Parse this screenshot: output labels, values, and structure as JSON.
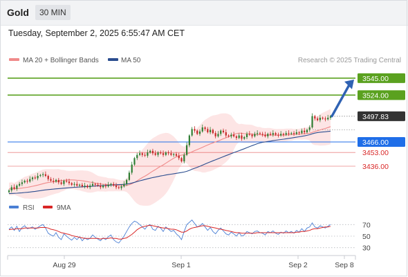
{
  "header": {
    "asset": "Gold",
    "timeframe": "30 MIN"
  },
  "timestamp": "Tuesday, September 2, 2025 6:55:47 AM CET",
  "colors": {
    "resistance": "#5aa11f",
    "support": "#1f6ee8",
    "support_minor": "#d92626",
    "last_price_tag": "#333333",
    "ma20": "#f08a8a",
    "ma50": "#2b4d8f",
    "bollinger_fill": "#fde1e1",
    "candle_up": "#2e7d32",
    "candle_down": "#c62828",
    "arrow": "#2f62b3",
    "rsi": "#4a7fd4",
    "rsi_ma": "#d92626"
  },
  "chart_data": [
    {
      "type": "candlestick",
      "legend": [
        {
          "name": "MA 20 + Bollinger Bands",
          "color": "#f08a8a"
        },
        {
          "name": "MA 50",
          "color": "#2b4d8f"
        }
      ],
      "watermark": "Research © 2025 Trading Central",
      "x_labels": [
        "Aug 29",
        "Sep 1",
        "Sep 2",
        "Sep 8"
      ],
      "ylim": [
        3400,
        3556
      ],
      "levels": [
        {
          "value": 3545.0,
          "label": "3545.00",
          "kind": "resistance"
        },
        {
          "value": 3524.0,
          "label": "3524.00",
          "kind": "resistance"
        },
        {
          "value": 3497.83,
          "label": "3497.83",
          "kind": "last"
        },
        {
          "value": 3466.0,
          "label": "3466.00",
          "kind": "support"
        },
        {
          "value": 3453.0,
          "label": "3453.00",
          "kind": "support_minor"
        },
        {
          "value": 3436.0,
          "label": "3436.00",
          "kind": "support_minor"
        }
      ],
      "closes": [
        3406,
        3410,
        3408,
        3412,
        3414,
        3416,
        3418,
        3417,
        3420,
        3422,
        3421,
        3424,
        3425,
        3426,
        3424,
        3420,
        3418,
        3417,
        3419,
        3416,
        3414,
        3418,
        3417,
        3415,
        3413,
        3414,
        3412,
        3413,
        3411,
        3412,
        3410,
        3412,
        3414,
        3413,
        3412,
        3410,
        3412,
        3411,
        3413,
        3414,
        3412,
        3410,
        3409,
        3411,
        3414,
        3419,
        3428,
        3438,
        3446,
        3450,
        3452,
        3450,
        3449,
        3453,
        3455,
        3452,
        3450,
        3453,
        3452,
        3450,
        3453,
        3452,
        3450,
        3451,
        3449,
        3446,
        3442,
        3450,
        3462,
        3474,
        3482,
        3480,
        3476,
        3479,
        3484,
        3482,
        3478,
        3481,
        3477,
        3473,
        3476,
        3480,
        3478,
        3474,
        3473,
        3475,
        3473,
        3471,
        3474,
        3470,
        3472,
        3476,
        3475,
        3473,
        3476,
        3477,
        3476,
        3475,
        3473,
        3476,
        3475,
        3477,
        3475,
        3474,
        3476,
        3475,
        3477,
        3476,
        3477,
        3476,
        3478,
        3477,
        3480,
        3478,
        3481,
        3484,
        3498,
        3495,
        3493,
        3496,
        3495,
        3494,
        3496,
        3498
      ],
      "ma20_start": 3408,
      "ma50_start": 3402
    },
    {
      "type": "line",
      "legend": [
        {
          "name": "RSI",
          "color": "#4a7fd4"
        },
        {
          "name": "9MA",
          "color": "#d92626"
        }
      ],
      "ylim": [
        20,
        80
      ],
      "ticks": [
        {
          "value": 70,
          "label": "70"
        },
        {
          "value": 50,
          "label": "50"
        },
        {
          "value": 30,
          "label": "30"
        }
      ],
      "rsi": [
        62,
        66,
        60,
        67,
        58,
        65,
        68,
        63,
        64,
        66,
        62,
        65,
        68,
        70,
        64,
        55,
        52,
        50,
        56,
        48,
        44,
        54,
        50,
        46,
        43,
        48,
        44,
        49,
        42,
        47,
        44,
        46,
        52,
        48,
        45,
        42,
        47,
        44,
        49,
        52,
        44,
        40,
        38,
        44,
        50,
        58,
        66,
        72,
        76,
        74,
        70,
        66,
        62,
        68,
        70,
        62,
        60,
        67,
        64,
        58,
        66,
        62,
        58,
        60,
        54,
        50,
        44,
        58,
        70,
        74,
        78,
        72,
        66,
        68,
        72,
        66,
        60,
        65,
        58,
        54,
        60,
        64,
        59,
        54,
        52,
        57,
        54,
        50,
        56,
        50,
        52,
        58,
        56,
        54,
        58,
        59,
        56,
        55,
        52,
        58,
        56,
        59,
        55,
        53,
        57,
        55,
        59,
        56,
        58,
        55,
        60,
        57,
        63,
        58,
        64,
        66,
        73,
        66,
        64,
        68,
        66,
        64,
        67,
        70
      ],
      "rsi_ma": [
        61,
        62,
        62,
        63,
        63,
        63,
        64,
        64,
        64,
        64,
        64,
        64,
        65,
        65,
        65,
        64,
        62,
        61,
        60,
        58,
        56,
        55,
        54,
        53,
        51,
        50,
        49,
        48,
        47,
        46,
        46,
        46,
        46,
        46,
        46,
        45,
        46,
        46,
        46,
        47,
        46,
        46,
        45,
        45,
        46,
        47,
        50,
        53,
        57,
        61,
        64,
        66,
        67,
        68,
        69,
        68,
        67,
        66,
        65,
        64,
        64,
        63,
        62,
        62,
        61,
        59,
        57,
        57,
        59,
        62,
        64,
        65,
        66,
        67,
        68,
        68,
        67,
        66,
        65,
        64,
        63,
        62,
        61,
        60,
        59,
        58,
        57,
        56,
        56,
        55,
        55,
        55,
        55,
        55,
        55,
        56,
        56,
        56,
        56,
        56,
        56,
        56,
        56,
        56,
        56,
        56,
        56,
        56,
        56,
        56,
        57,
        57,
        58,
        58,
        59,
        60,
        62,
        63,
        63,
        64,
        65,
        66,
        66,
        67
      ]
    }
  ]
}
